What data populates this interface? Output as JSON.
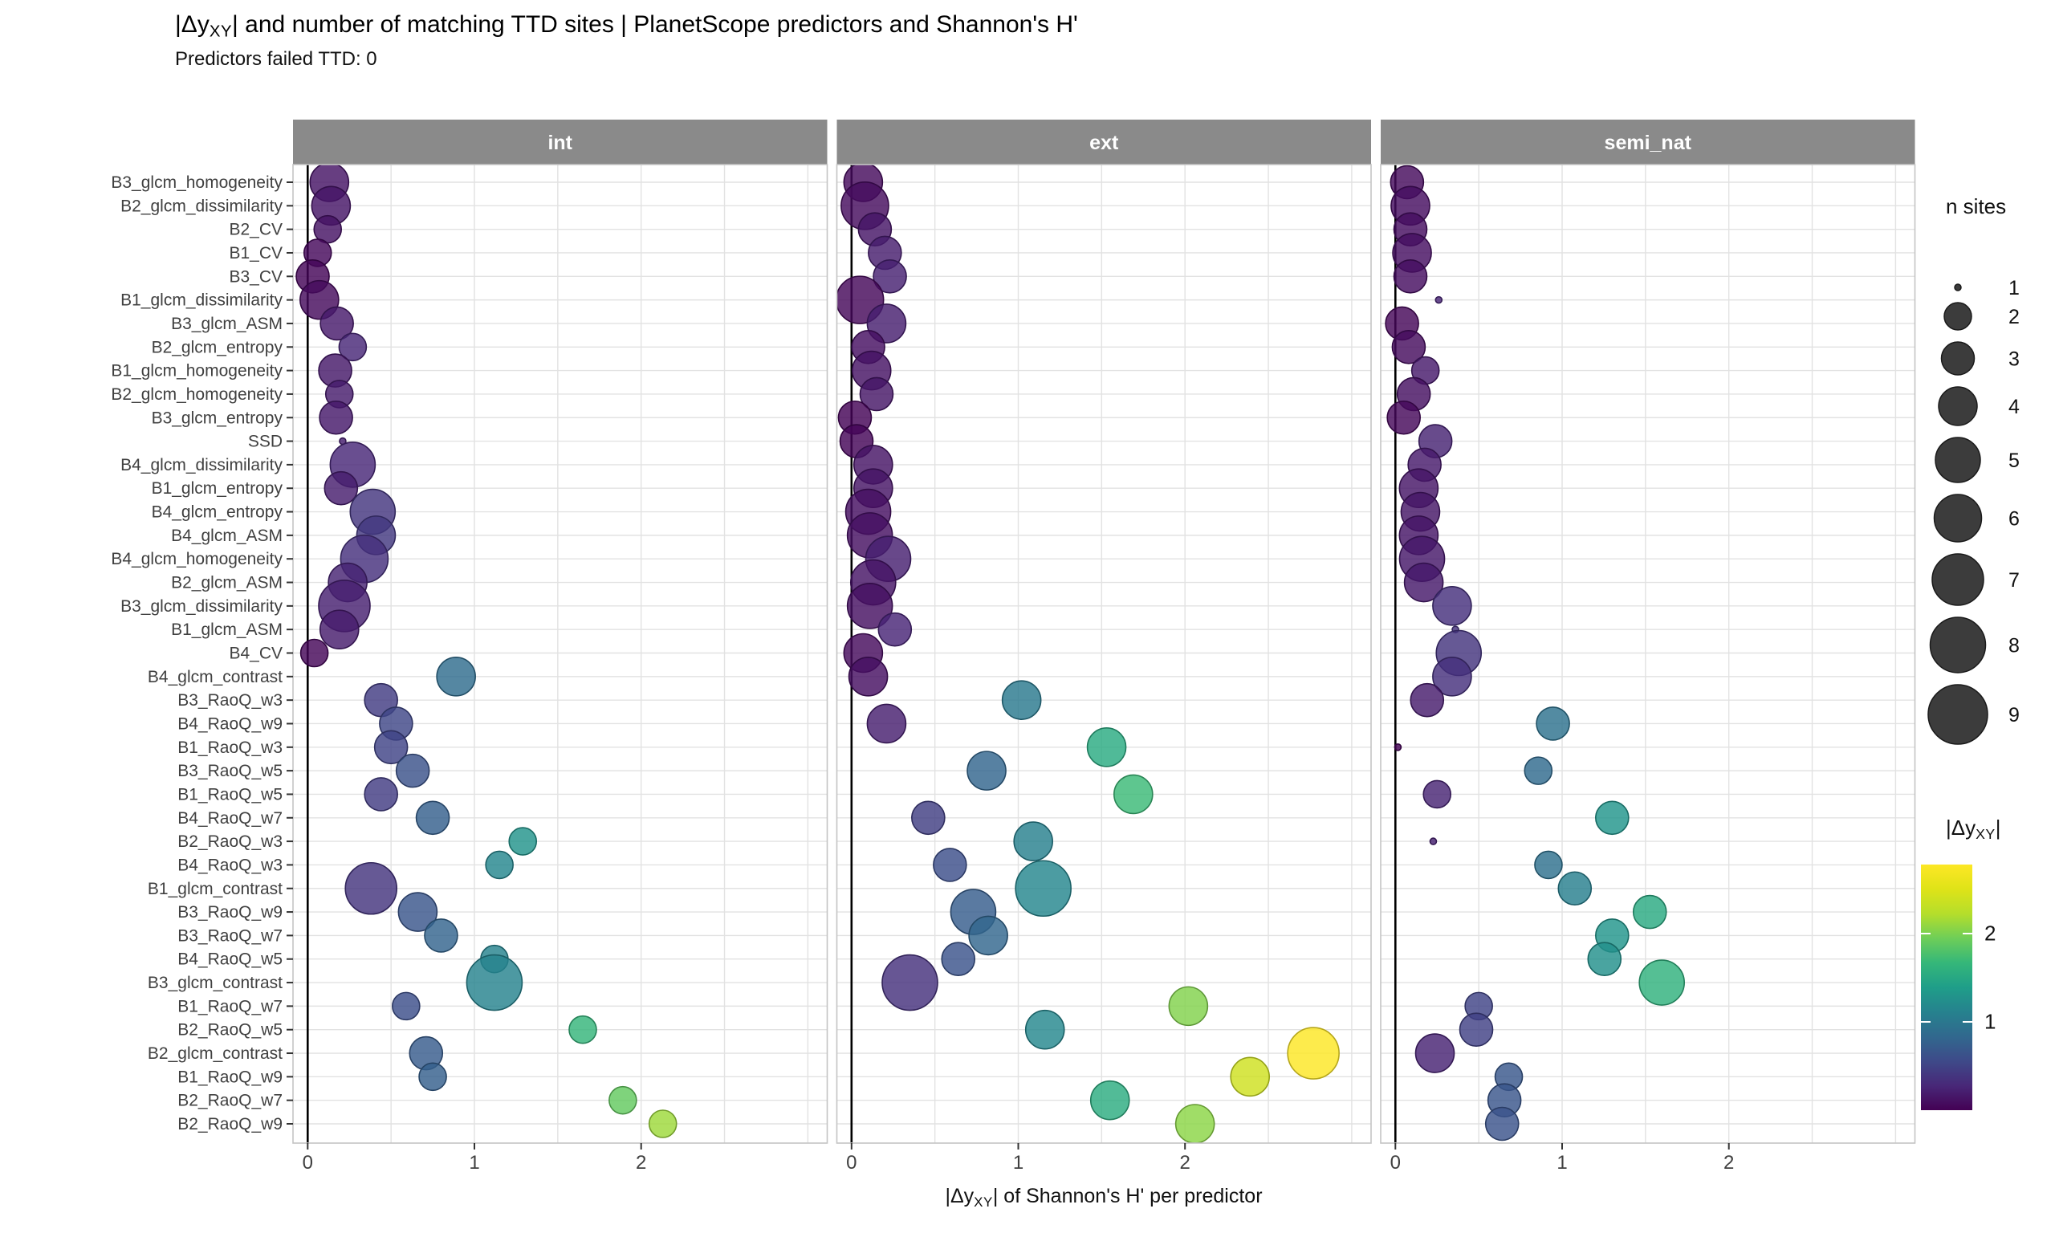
{
  "title": {
    "prefix": "|Δy",
    "sub": "XY",
    "rest": "|  and number of matching TTD sites | PlanetScope predictors and Shannon's H'"
  },
  "subtitle": "Predictors failed TTD: 0",
  "x_axis_title": {
    "prefix": "|Δy",
    "sub": "XY",
    "rest": "| of Shannon's H' per predictor"
  },
  "facets": [
    "int",
    "ext",
    "semi_nat"
  ],
  "x_ticks": [
    0,
    1,
    2
  ],
  "predictors": [
    "B3_glcm_homogeneity",
    "B2_glcm_dissimilarity",
    "B2_CV",
    "B1_CV",
    "B3_CV",
    "B1_glcm_dissimilarity",
    "B3_glcm_ASM",
    "B2_glcm_entropy",
    "B1_glcm_homogeneity",
    "B2_glcm_homogeneity",
    "B3_glcm_entropy",
    "SSD",
    "B4_glcm_dissimilarity",
    "B1_glcm_entropy",
    "B4_glcm_entropy",
    "B4_glcm_ASM",
    "B4_glcm_homogeneity",
    "B2_glcm_ASM",
    "B3_glcm_dissimilarity",
    "B1_glcm_ASM",
    "B4_CV",
    "B4_glcm_contrast",
    "B3_RaoQ_w3",
    "B4_RaoQ_w9",
    "B1_RaoQ_w3",
    "B3_RaoQ_w5",
    "B1_RaoQ_w5",
    "B4_RaoQ_w7",
    "B2_RaoQ_w3",
    "B4_RaoQ_w3",
    "B1_glcm_contrast",
    "B3_RaoQ_w9",
    "B3_RaoQ_w7",
    "B4_RaoQ_w5",
    "B3_glcm_contrast",
    "B1_RaoQ_w7",
    "B2_RaoQ_w5",
    "B2_glcm_contrast",
    "B1_RaoQ_w9",
    "B2_RaoQ_w7",
    "B2_RaoQ_w9"
  ],
  "size_legend": {
    "title": "n sites",
    "values": [
      1,
      2,
      3,
      4,
      5,
      6,
      7,
      8,
      9
    ]
  },
  "color_legend": {
    "title_prefix": "|Δy",
    "title_sub": "XY",
    "title_suffix": "|",
    "ticks": [
      1,
      2
    ],
    "domain": [
      0,
      2.78
    ],
    "viridis": [
      "#440154",
      "#482878",
      "#3e4a89",
      "#31688e",
      "#26828e",
      "#1f9e89",
      "#35b779",
      "#6ece58",
      "#b5de2b",
      "#dfe318",
      "#fde725"
    ]
  },
  "chart_data": {
    "type": "bubble",
    "title": "|ΔyXY| and number of matching TTD sites | PlanetScope predictors and Shannon's H'",
    "subtitle": "Predictors failed TTD: 0",
    "xlabel": "|ΔyXY| of Shannon's H' per predictor",
    "ylabel": "",
    "xlim": [
      -0.09,
      3.12
    ],
    "grid": true,
    "legend_position": "right",
    "point_format": "[abs_delta_y_xy, n_sites]",
    "color_maps_to": "abs_delta_y_xy (viridis, 0 to 2.78)",
    "size_maps_to": "n_sites (1 to 9)",
    "panels": [
      {
        "name": "int",
        "points": [
          [
            0.13,
            4
          ],
          [
            0.14,
            4
          ],
          [
            0.12,
            2
          ],
          [
            0.06,
            2
          ],
          [
            0.03,
            3
          ],
          [
            0.07,
            4
          ],
          [
            0.175,
            3
          ],
          [
            0.27,
            2
          ],
          [
            0.165,
            3
          ],
          [
            0.19,
            2
          ],
          [
            0.17,
            3
          ],
          [
            0.21,
            1
          ],
          [
            0.27,
            5
          ],
          [
            0.2,
            3
          ],
          [
            0.39,
            5
          ],
          [
            0.41,
            4
          ],
          [
            0.34,
            6
          ],
          [
            0.24,
            4
          ],
          [
            0.22,
            7
          ],
          [
            0.19,
            4
          ],
          [
            0.04,
            2
          ],
          [
            0.89,
            4
          ],
          [
            0.44,
            3
          ],
          [
            0.53,
            3
          ],
          [
            0.5,
            3
          ],
          [
            0.63,
            3
          ],
          [
            0.44,
            3
          ],
          [
            0.75,
            3
          ],
          [
            1.29,
            2
          ],
          [
            1.15,
            2
          ],
          [
            0.38,
            7
          ],
          [
            0.66,
            4
          ],
          [
            0.8,
            3
          ],
          [
            1.12,
            2
          ],
          [
            1.12,
            8
          ],
          [
            0.59,
            2
          ],
          [
            1.65,
            2
          ],
          [
            0.71,
            3
          ],
          [
            0.75,
            2
          ],
          [
            1.89,
            2
          ],
          [
            2.13,
            2
          ]
        ]
      },
      {
        "name": "ext",
        "points": [
          [
            0.07,
            4
          ],
          [
            0.08,
            6
          ],
          [
            0.14,
            3
          ],
          [
            0.2,
            3
          ],
          [
            0.23,
            3
          ],
          [
            0.05,
            6
          ],
          [
            0.21,
            4
          ],
          [
            0.1,
            3
          ],
          [
            0.12,
            4
          ],
          [
            0.15,
            3
          ],
          [
            0.02,
            3
          ],
          [
            0.03,
            3
          ],
          [
            0.13,
            4
          ],
          [
            0.13,
            4
          ],
          [
            0.1,
            5
          ],
          [
            0.11,
            5
          ],
          [
            0.22,
            5
          ],
          [
            0.13,
            5
          ],
          [
            0.11,
            5
          ],
          [
            0.26,
            3
          ],
          [
            0.07,
            4
          ],
          [
            0.1,
            4
          ],
          [
            1.02,
            4
          ],
          [
            0.21,
            4
          ],
          [
            1.53,
            4
          ],
          [
            0.81,
            4
          ],
          [
            1.69,
            4
          ],
          [
            0.46,
            3
          ],
          [
            1.09,
            4
          ],
          [
            0.59,
            3
          ],
          [
            1.15,
            8
          ],
          [
            0.73,
            5
          ],
          [
            0.82,
            4
          ],
          [
            0.64,
            3
          ],
          [
            0.35,
            8
          ],
          [
            2.02,
            4
          ],
          [
            1.16,
            4
          ],
          [
            2.77,
            7
          ],
          [
            2.39,
            4
          ],
          [
            1.55,
            4
          ],
          [
            2.06,
            4
          ]
        ]
      },
      {
        "name": "semi_nat",
        "points": [
          [
            0.07,
            3
          ],
          [
            0.09,
            4
          ],
          [
            0.09,
            3
          ],
          [
            0.1,
            4
          ],
          [
            0.09,
            3
          ],
          [
            0.26,
            1
          ],
          [
            0.04,
            3
          ],
          [
            0.08,
            3
          ],
          [
            0.18,
            2
          ],
          [
            0.11,
            3
          ],
          [
            0.05,
            3
          ],
          [
            0.24,
            3
          ],
          [
            0.175,
            3
          ],
          [
            0.14,
            4
          ],
          [
            0.15,
            4
          ],
          [
            0.14,
            4
          ],
          [
            0.16,
            5
          ],
          [
            0.17,
            4
          ],
          [
            0.34,
            4
          ],
          [
            0.36,
            1
          ],
          [
            0.38,
            5
          ],
          [
            0.34,
            4
          ],
          [
            0.19,
            3
          ],
          [
            0.945,
            3
          ],
          [
            0.015,
            1
          ],
          [
            0.857,
            2
          ],
          [
            0.25,
            2
          ],
          [
            1.3,
            3
          ],
          [
            0.227,
            1
          ],
          [
            0.918,
            2
          ],
          [
            1.076,
            3
          ],
          [
            1.526,
            3
          ],
          [
            1.3,
            3
          ],
          [
            1.254,
            3
          ],
          [
            1.598,
            5
          ],
          [
            0.5,
            2
          ],
          [
            0.485,
            3
          ],
          [
            0.237,
            4
          ],
          [
            0.68,
            2
          ],
          [
            0.654,
            3
          ],
          [
            0.64,
            3
          ]
        ]
      }
    ]
  },
  "style": {
    "strip_bg": "#8a8a8a",
    "strip_text": "#ffffff",
    "grid_color": "#e2e2e2",
    "panel_border": "#c4c4c4",
    "zero_line": "#000000",
    "label_color": "#404040",
    "legend_dot_fill": "#3c3c3c",
    "legend_dot_stroke": "#1a1a1a"
  }
}
